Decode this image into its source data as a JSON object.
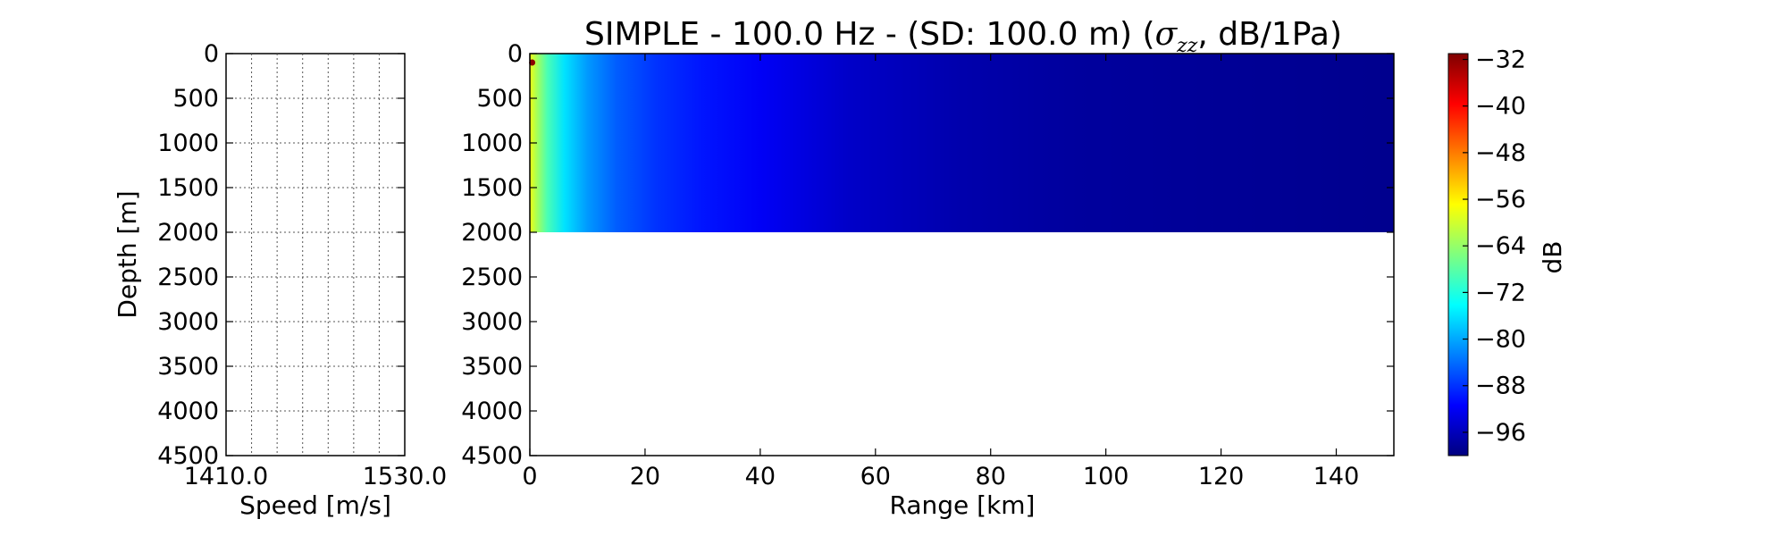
{
  "chart_data": [
    {
      "type": "line",
      "panel": "sound-speed-profile",
      "title": "",
      "xlabel": "Speed [m/s]",
      "ylabel": "Depth [m]",
      "xlim": [
        1410.0,
        1530.0
      ],
      "ylim": [
        0,
        4500
      ],
      "y_inverted": true,
      "xtick_labels": [
        "1410.0",
        "1530.0"
      ],
      "ytick_labels": [
        "0",
        "500",
        "1000",
        "1500",
        "2000",
        "2500",
        "3000",
        "3500",
        "4000",
        "4500"
      ],
      "grid": true,
      "series": []
    },
    {
      "type": "heatmap",
      "panel": "transmission-field",
      "title": "SIMPLE - 100.0 Hz - (SD: 100.0 m) (",
      "title_symbol": "σ",
      "title_subscript": "zz",
      "title_suffix": ", dB/1Pa)",
      "xlabel": "Range [km]",
      "ylabel": "",
      "xlim": [
        0,
        150
      ],
      "ylim": [
        0,
        4500
      ],
      "y_inverted": true,
      "xtick_labels": [
        "0",
        "20",
        "40",
        "60",
        "80",
        "100",
        "120",
        "140"
      ],
      "ytick_labels": [
        "0",
        "500",
        "1000",
        "1500",
        "2000",
        "2500",
        "3000",
        "3500",
        "4000",
        "4500"
      ],
      "field_depth_max": 2000,
      "field_range_max": 150,
      "source_range": 0.4,
      "source_depth": 100,
      "field_profile": [
        {
          "range": 0,
          "db": -58
        },
        {
          "range": 1,
          "db": -62
        },
        {
          "range": 3,
          "db": -69
        },
        {
          "range": 6,
          "db": -76
        },
        {
          "range": 10,
          "db": -81
        },
        {
          "range": 15,
          "db": -85
        },
        {
          "range": 22,
          "db": -88
        },
        {
          "range": 30,
          "db": -90
        },
        {
          "range": 40,
          "db": -92
        },
        {
          "range": 55,
          "db": -95
        },
        {
          "range": 75,
          "db": -97
        },
        {
          "range": 95,
          "db": -98
        },
        {
          "range": 150,
          "db": -99
        }
      ],
      "colorbar": {
        "label": "dB",
        "min": -100,
        "max": -31,
        "tick_labels": [
          "−32",
          "−40",
          "−48",
          "−56",
          "−64",
          "−72",
          "−80",
          "−88",
          "−96"
        ],
        "colormap": "jet",
        "colors": [
          "#00007f",
          "#0000ff",
          "#007fff",
          "#00ffff",
          "#7fff7f",
          "#ffff00",
          "#ff7f00",
          "#ff0000",
          "#7f0000"
        ]
      },
      "grid": false
    }
  ]
}
